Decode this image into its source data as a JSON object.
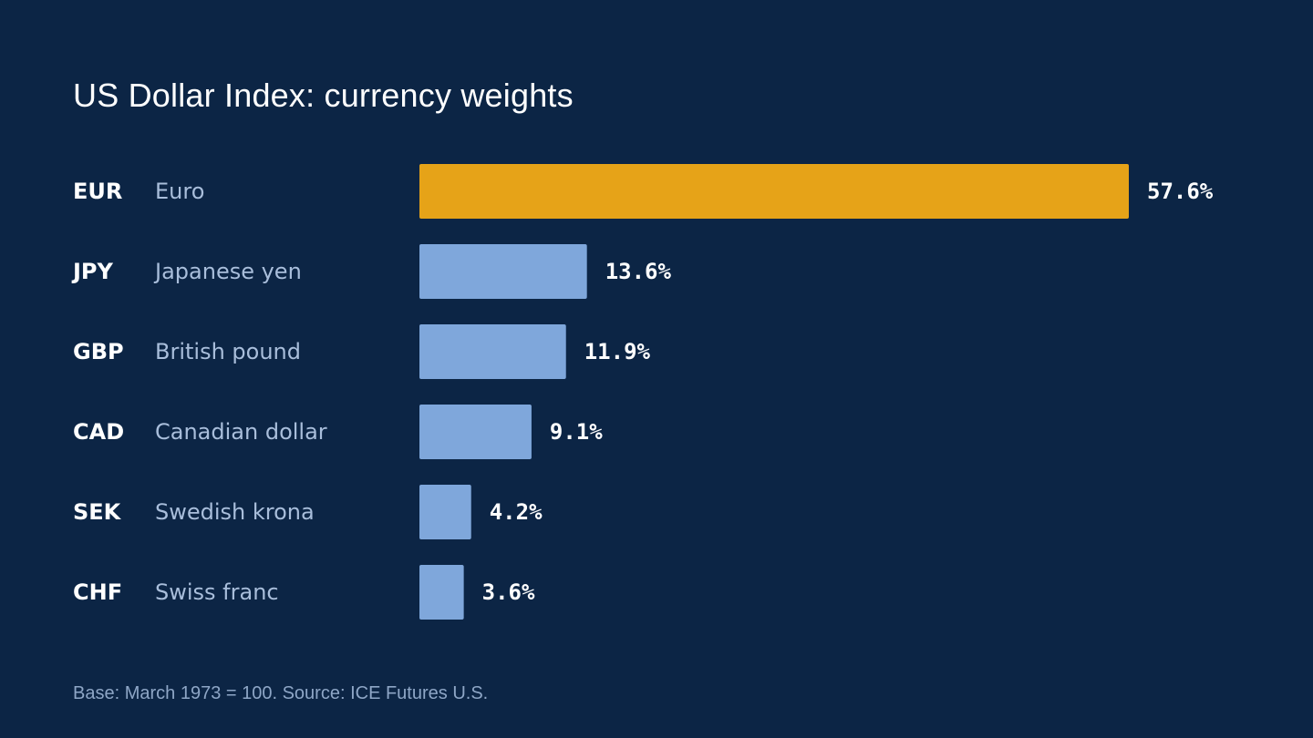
{
  "chart_data": {
    "type": "bar",
    "orientation": "horizontal",
    "title": "US Dollar Index: currency weights",
    "categories": [
      "EUR",
      "JPY",
      "GBP",
      "CAD",
      "SEK",
      "CHF"
    ],
    "category_names": [
      "Euro",
      "Japanese yen",
      "British pound",
      "Canadian dollar",
      "Swedish krona",
      "Swiss franc"
    ],
    "values": [
      57.6,
      13.6,
      11.9,
      9.1,
      4.2,
      3.6
    ],
    "value_labels": [
      "57.6%",
      "13.6%",
      "11.9%",
      "9.1%",
      "4.2%",
      "3.6%"
    ],
    "unit": "%",
    "highlight_index": 0,
    "xlim": [
      0,
      57.6
    ],
    "grid": false,
    "legend": "none"
  },
  "footnote": "Base: March 1973 = 100. Source: ICE Futures U.S.",
  "colors": {
    "background": "#0c2545",
    "highlight_bar": "#e6a318",
    "bar": "#7fa7db",
    "title": "#ffffff",
    "code": "#ffffff",
    "name": "#a9bedb",
    "value": "#ffffff",
    "footnote": "#8ea6c6"
  }
}
